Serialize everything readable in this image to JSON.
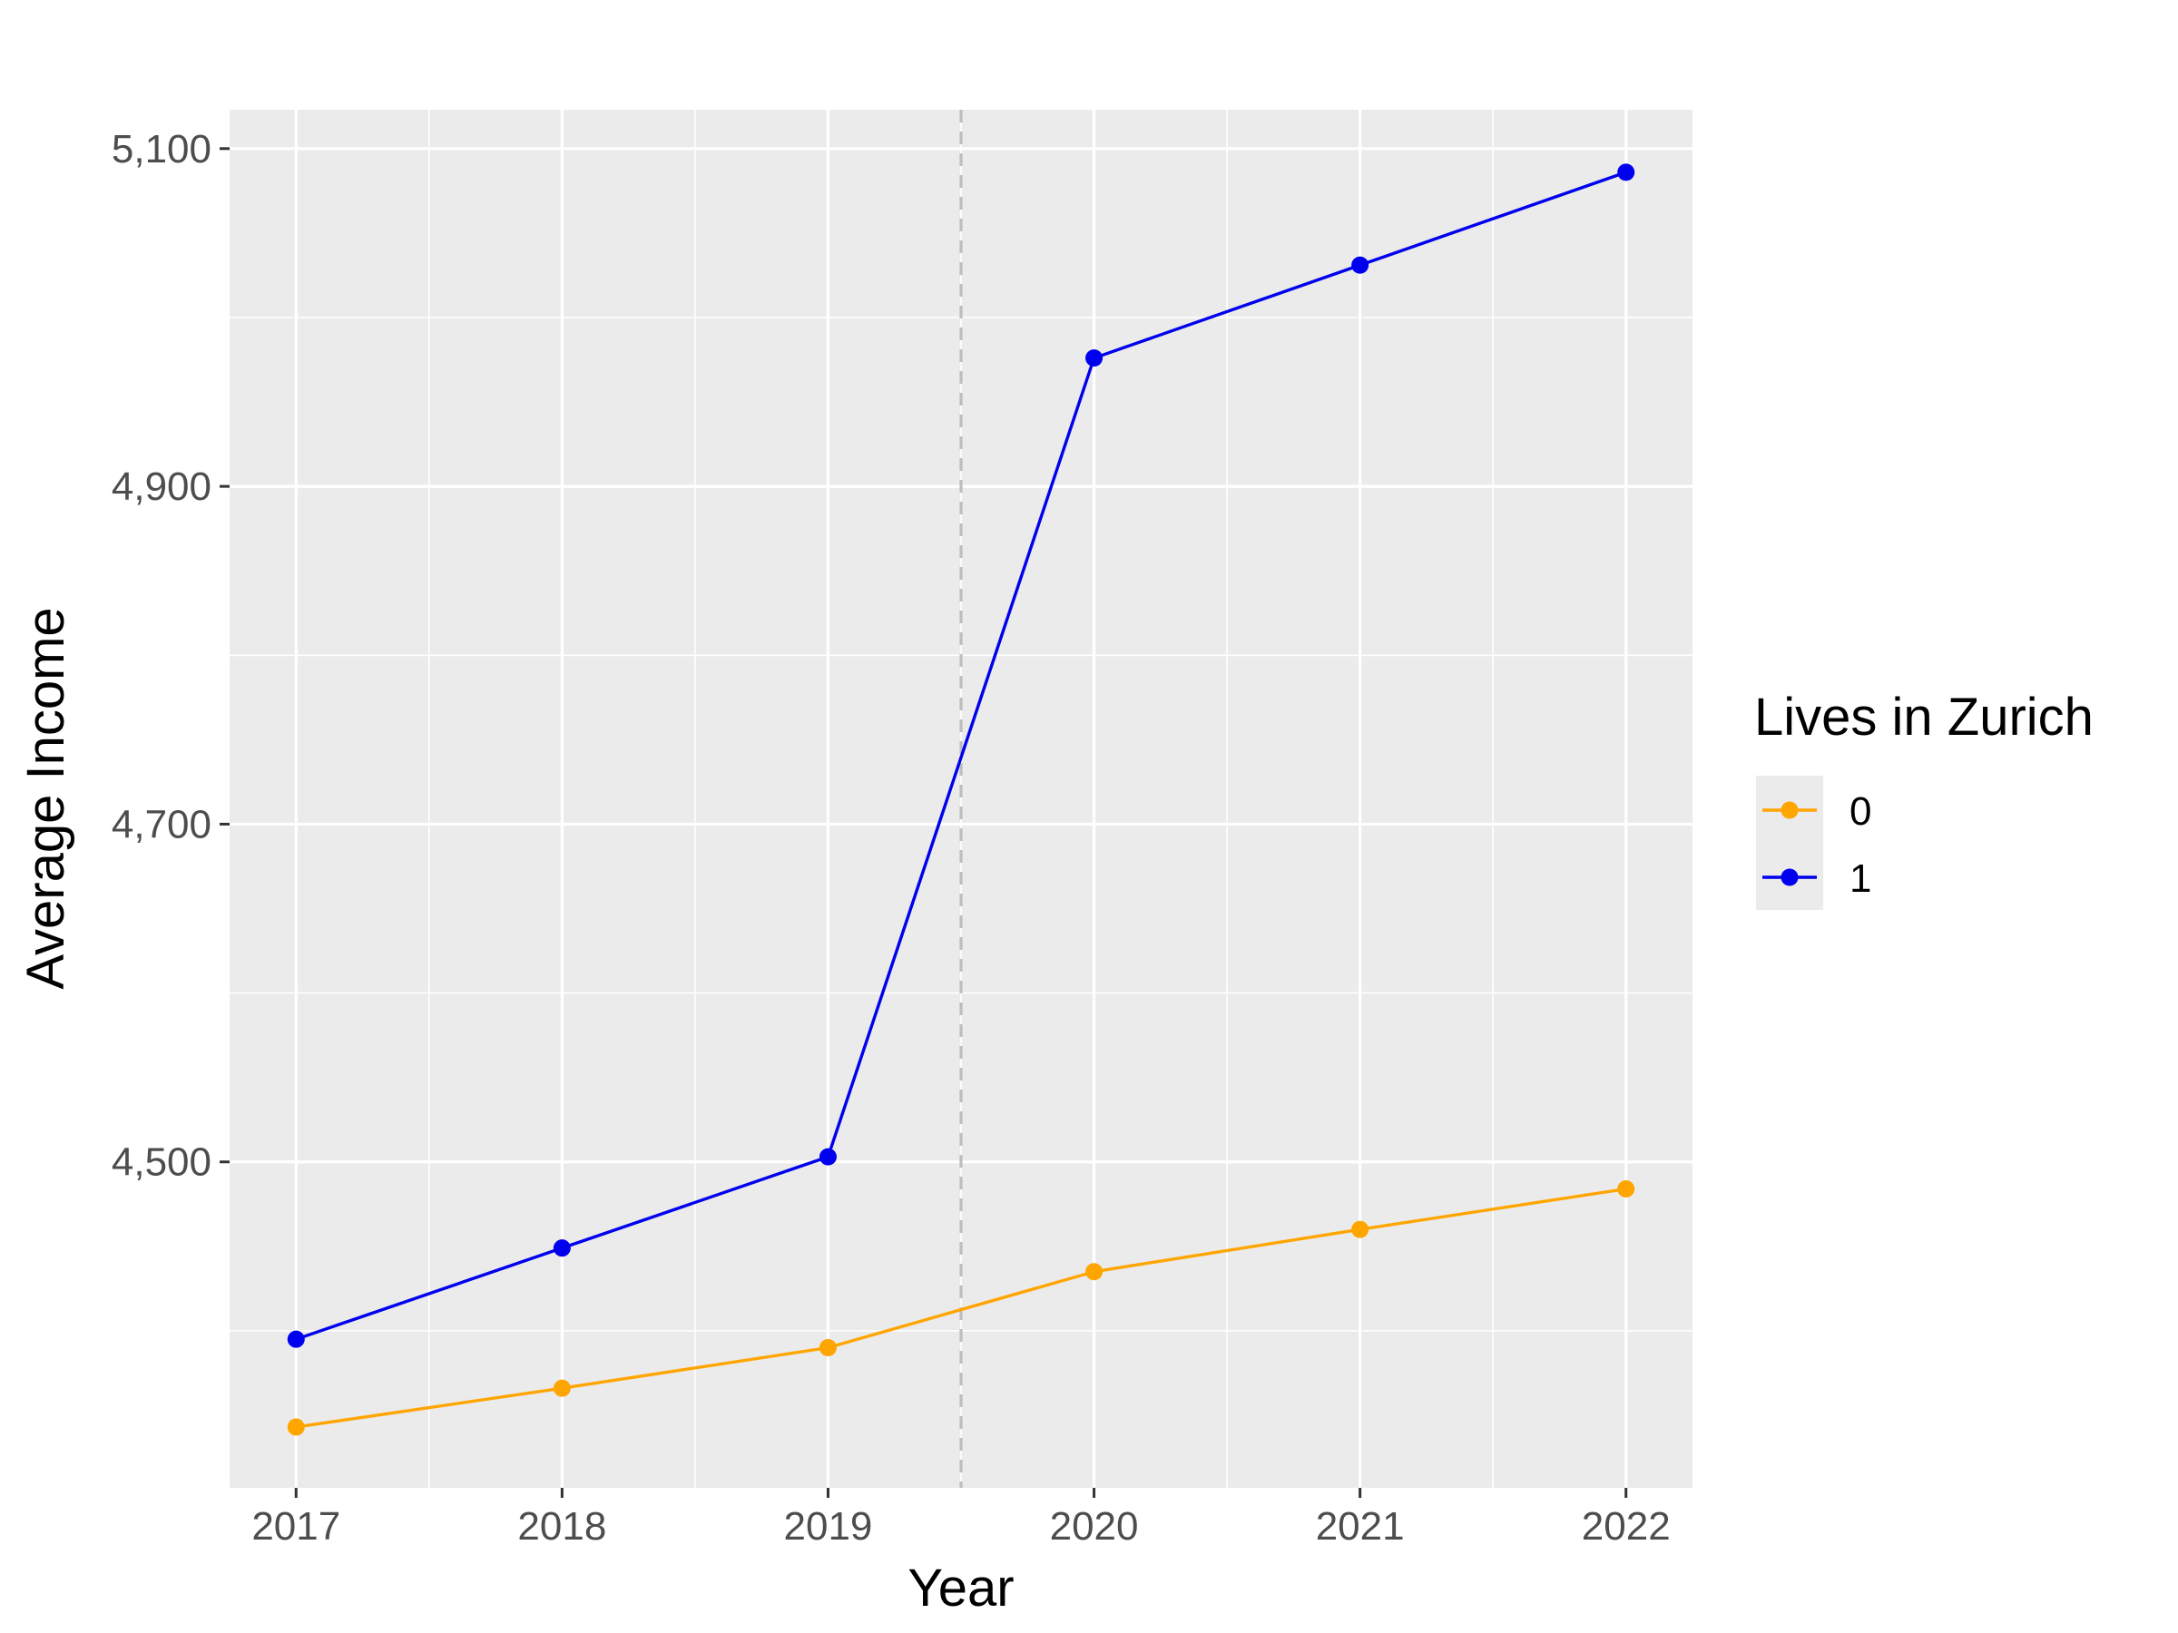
{
  "chart_data": {
    "type": "line",
    "xlabel": "Year",
    "ylabel": "Average Income",
    "x": [
      2017,
      2018,
      2019,
      2020,
      2021,
      2022
    ],
    "xlim": [
      2016.75,
      2022.25
    ],
    "ylim": [
      4307,
      5123
    ],
    "y_ticks": [
      4500,
      4700,
      4900,
      5100
    ],
    "y_tick_labels": [
      "4,500",
      "4,700",
      "4,900",
      "5,100"
    ],
    "x_tick_labels": [
      "2017",
      "2018",
      "2019",
      "2020",
      "2021",
      "2022"
    ],
    "grid": true,
    "vline": {
      "x": 2019.5,
      "style": "dashed",
      "color": "#bdbdbd"
    },
    "legend": {
      "title": "Lives in Zurich",
      "position": "right"
    },
    "series": [
      {
        "name": "0",
        "color": "#FFA500",
        "values": [
          4343,
          4366,
          4390,
          4435,
          4460,
          4484
        ]
      },
      {
        "name": "1",
        "color": "#0000EE",
        "values": [
          4395,
          4449,
          4503,
          4976,
          5031,
          5086
        ]
      }
    ]
  }
}
